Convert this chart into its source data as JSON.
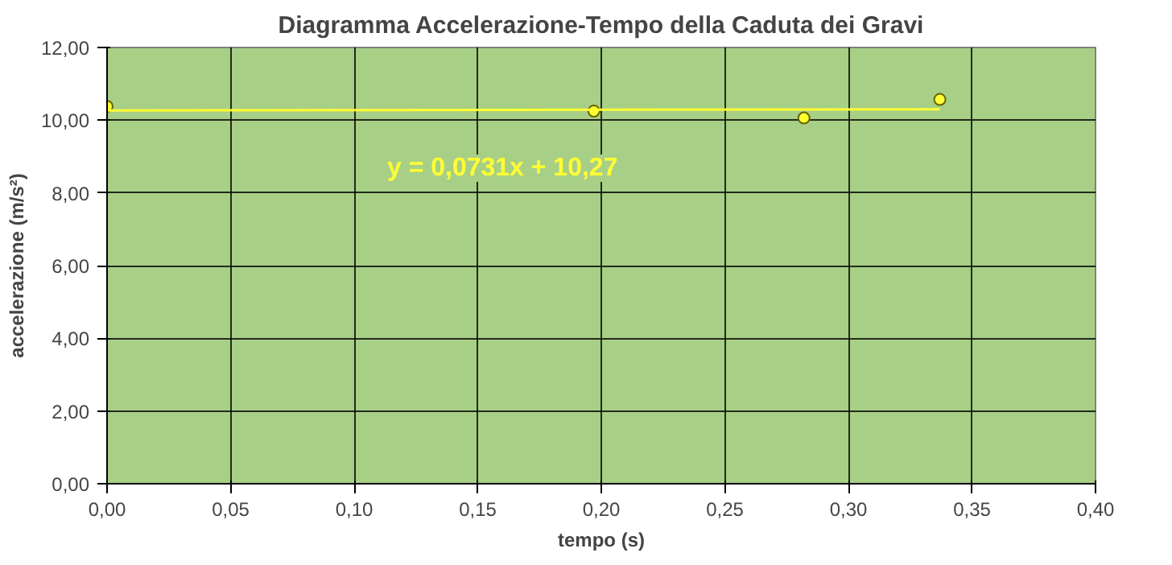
{
  "chart_data": {
    "type": "scatter",
    "title": "Diagramma Accelerazione-Tempo della Caduta dei Gravi",
    "xlabel": "tempo (s)",
    "ylabel": "accelerazione (m/s²)",
    "series": [
      {
        "color": "#ffff33",
        "x": [
          0.0,
          0.197,
          0.282,
          0.337
        ],
        "values": [
          10.38,
          10.25,
          10.06,
          10.57
        ]
      },
      {
        "type": "line",
        "marker": "none",
        "color": "#ffff33",
        "x": [
          0.0,
          0.337
        ],
        "values": [
          10.27,
          10.3
        ]
      }
    ],
    "annotations": [
      "y = 0,0731x + 10,27"
    ],
    "xlim": [
      0,
      0.4
    ],
    "xticks": [
      {
        "value": 0,
        "label": "0,00"
      },
      {
        "value": 0.05,
        "label": "0,05"
      },
      {
        "value": 0.1,
        "label": "0,10"
      },
      {
        "value": 0.15,
        "label": "0,15"
      },
      {
        "value": 0.2,
        "label": "0,20"
      },
      {
        "value": 0.25,
        "label": "0,25"
      },
      {
        "value": 0.3,
        "label": "0,30"
      },
      {
        "value": 0.35,
        "label": "0,35"
      },
      {
        "value": 0.4,
        "label": "0,40"
      }
    ],
    "ylim": [
      0,
      12
    ],
    "yticks": [
      {
        "value": 0,
        "label": "0,00"
      },
      {
        "value": 2,
        "label": "2,00"
      },
      {
        "value": 4,
        "label": "4,00"
      },
      {
        "value": 6,
        "label": "6,00"
      },
      {
        "value": 8,
        "label": "8,00"
      },
      {
        "value": 10,
        "label": "10,00"
      },
      {
        "value": 12,
        "label": "12,00"
      }
    ],
    "grid": true,
    "marker": "circle"
  }
}
